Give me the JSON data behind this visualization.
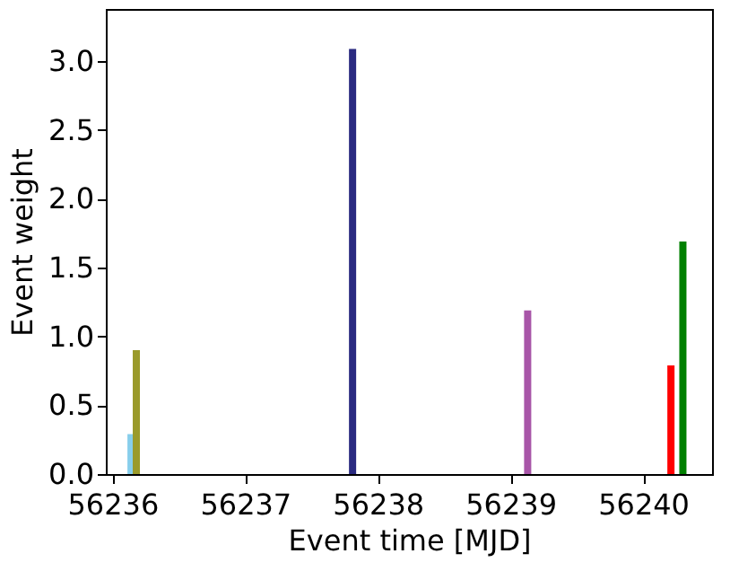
{
  "chart_data": {
    "type": "bar",
    "xlabel": "Event time [MJD]",
    "ylabel": "Event weight",
    "x": [
      56236.14,
      56236.18,
      56237.81,
      56239.13,
      56240.21,
      56240.3
    ],
    "values": [
      0.29,
      0.9,
      3.09,
      1.19,
      0.79,
      1.69
    ],
    "colors": [
      "#87ceeb",
      "#9a9a2a",
      "#2a2a80",
      "#a855a8",
      "#ff0000",
      "#008000"
    ],
    "xlim": [
      56235.95,
      56240.52
    ],
    "xticks": [
      56236,
      56237,
      56238,
      56239,
      56240
    ],
    "ylim": [
      0,
      3.38
    ],
    "yticks": [
      {
        "value": 0,
        "label": "0.0"
      },
      0.5,
      {
        "value": 1,
        "label": "1.0"
      },
      1.5,
      {
        "value": 2,
        "label": "2.0"
      },
      2.5,
      {
        "value": 3,
        "label": "3.0"
      }
    ],
    "grid": false
  }
}
